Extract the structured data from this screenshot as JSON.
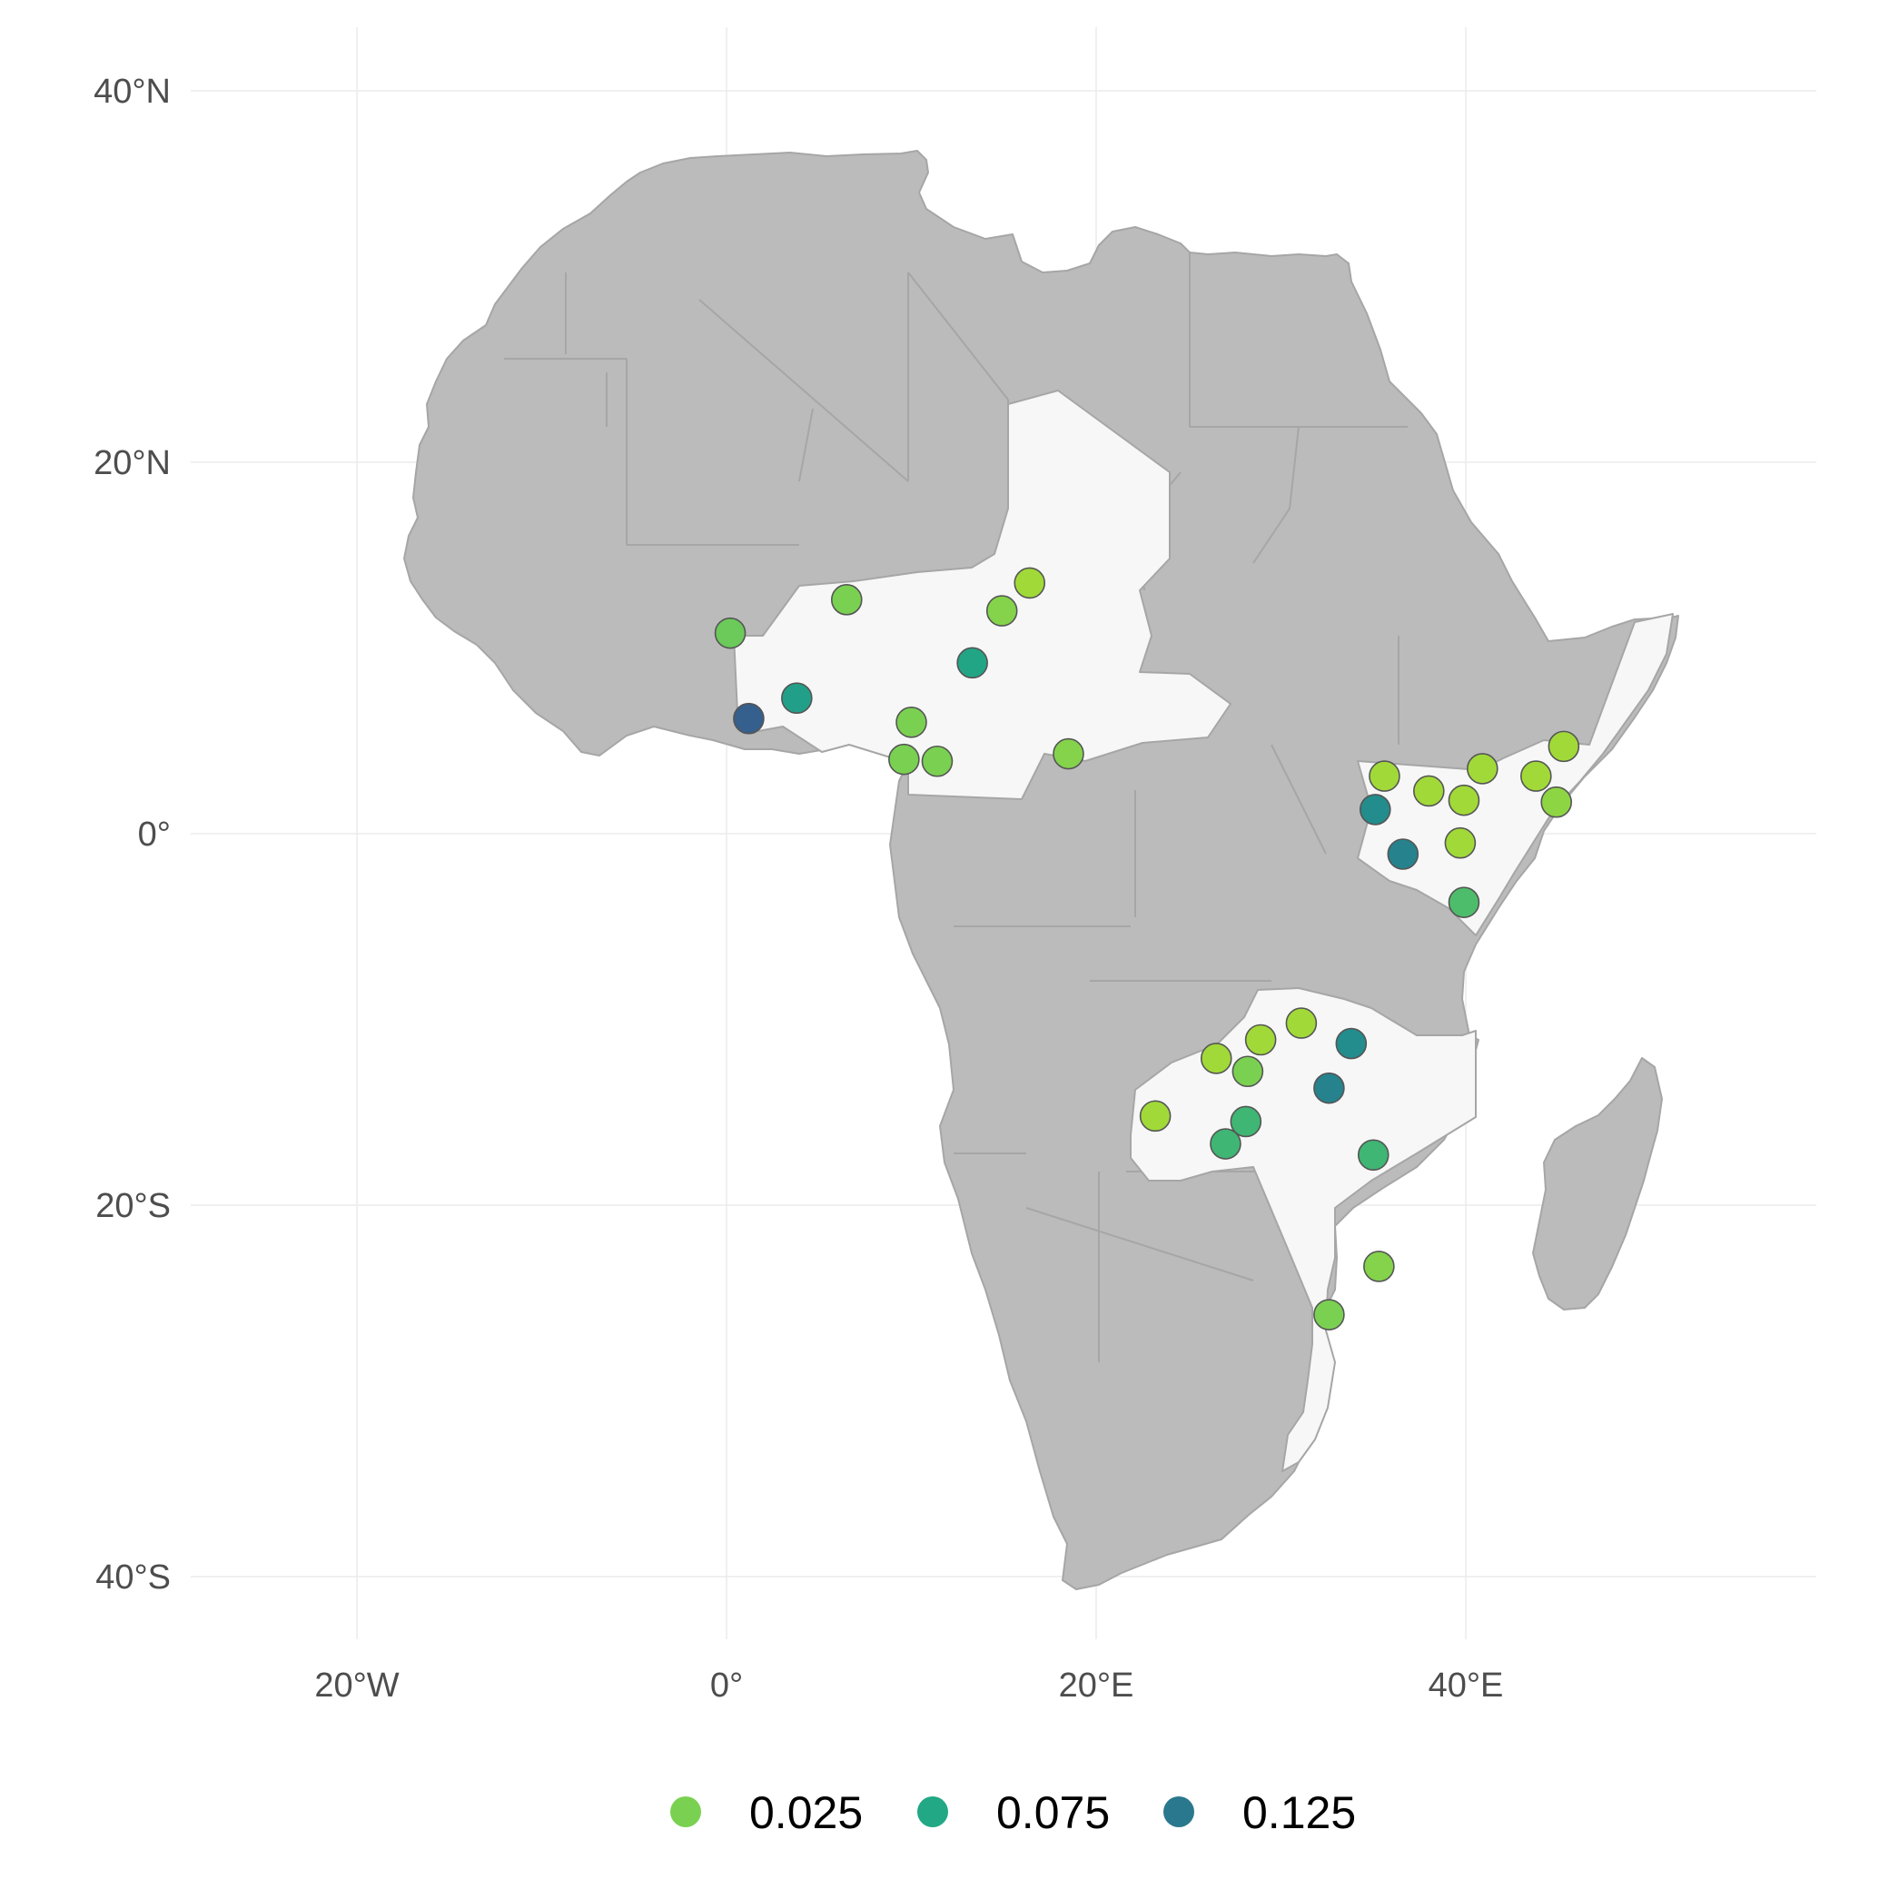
{
  "map": {
    "y_ticks": [
      "40°N",
      "20°N",
      "0°",
      "20°S",
      "40°S"
    ],
    "x_ticks": [
      "20°W",
      "0°",
      "20°E",
      "40°E"
    ],
    "land_color": "#bbbbbb",
    "highlight_color": "#f7f7f7",
    "border_color": "#a6a6a6",
    "grid_color": "#ebebeb"
  },
  "chart_data": {
    "type": "scatter",
    "subtype": "point map (longitude / latitude)",
    "x_ticks_lon": [
      -20,
      0,
      20,
      40
    ],
    "y_ticks_lat": [
      40,
      20,
      0,
      -20,
      -40
    ],
    "lon_range": [
      -30,
      59
    ],
    "lat_range": [
      -43.5,
      43
    ],
    "grid": true,
    "legend_position": "bottom",
    "highlighted_countries": [
      "Benin",
      "Nigeria",
      "Niger",
      "Chad",
      "Cameroon",
      "Central African Republic",
      "Kenya",
      "Somalia",
      "Zambia",
      "Malawi",
      "Mozambique"
    ],
    "legend": [
      {
        "label": "0.025",
        "color": "#7ad151"
      },
      {
        "label": "0.075",
        "color": "#22a884"
      },
      {
        "label": "0.125",
        "color": "#2a788e"
      }
    ],
    "points": [
      {
        "lon": 0.2,
        "lat": 10.8,
        "value": 0.035
      },
      {
        "lon": 1.2,
        "lat": 6.2,
        "value": 0.14
      },
      {
        "lon": 3.8,
        "lat": 7.3,
        "value": 0.075
      },
      {
        "lon": 6.5,
        "lat": 12.6,
        "value": 0.03
      },
      {
        "lon": 10.0,
        "lat": 6.0,
        "value": 0.03
      },
      {
        "lon": 9.6,
        "lat": 4.0,
        "value": 0.03
      },
      {
        "lon": 11.4,
        "lat": 3.9,
        "value": 0.03
      },
      {
        "lon": 13.3,
        "lat": 9.2,
        "value": 0.065
      },
      {
        "lon": 14.9,
        "lat": 12.0,
        "value": 0.025
      },
      {
        "lon": 16.4,
        "lat": 13.5,
        "value": 0.01
      },
      {
        "lon": 18.5,
        "lat": 4.3,
        "value": 0.025
      },
      {
        "lon": 35.6,
        "lat": 3.1,
        "value": 0.01
      },
      {
        "lon": 38.0,
        "lat": 2.3,
        "value": 0.01
      },
      {
        "lon": 39.9,
        "lat": 1.8,
        "value": 0.01
      },
      {
        "lon": 40.9,
        "lat": 3.5,
        "value": 0.01
      },
      {
        "lon": 43.8,
        "lat": 3.1,
        "value": 0.01
      },
      {
        "lon": 45.3,
        "lat": 4.7,
        "value": 0.01
      },
      {
        "lon": 44.9,
        "lat": 1.7,
        "value": 0.02
      },
      {
        "lon": 35.1,
        "lat": 1.3,
        "value": 0.1
      },
      {
        "lon": 36.6,
        "lat": -1.1,
        "value": 0.11
      },
      {
        "lon": 39.7,
        "lat": -0.5,
        "value": 0.01
      },
      {
        "lon": 39.9,
        "lat": -3.7,
        "value": 0.045
      },
      {
        "lon": 31.1,
        "lat": -10.2,
        "value": 0.01
      },
      {
        "lon": 28.9,
        "lat": -11.1,
        "value": 0.01
      },
      {
        "lon": 26.5,
        "lat": -12.1,
        "value": 0.01
      },
      {
        "lon": 28.2,
        "lat": -12.8,
        "value": 0.03
      },
      {
        "lon": 33.8,
        "lat": -11.3,
        "value": 0.1
      },
      {
        "lon": 32.6,
        "lat": -13.7,
        "value": 0.11
      },
      {
        "lon": 23.2,
        "lat": -15.2,
        "value": 0.01
      },
      {
        "lon": 28.1,
        "lat": -15.5,
        "value": 0.05
      },
      {
        "lon": 27.0,
        "lat": -16.7,
        "value": 0.05
      },
      {
        "lon": 35.0,
        "lat": -17.3,
        "value": 0.05
      },
      {
        "lon": 35.3,
        "lat": -23.3,
        "value": 0.025
      },
      {
        "lon": 32.6,
        "lat": -25.9,
        "value": 0.03
      }
    ]
  }
}
